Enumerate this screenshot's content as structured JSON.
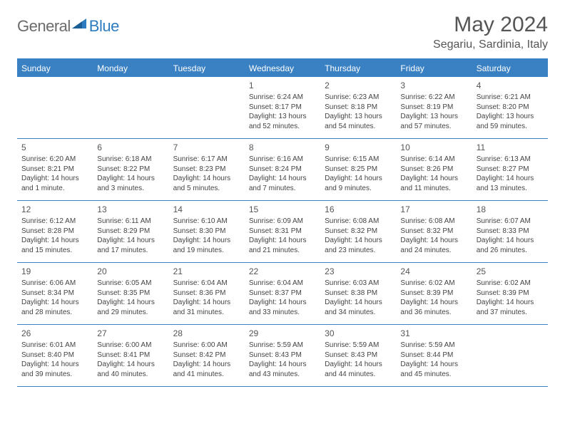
{
  "logo": {
    "word1": "General",
    "word2": "Blue"
  },
  "title": "May 2024",
  "subtitle": "Segariu, Sardinia, Italy",
  "colors": {
    "header_bar": "#3a81c4",
    "header_text": "#ffffff",
    "title_text": "#555555",
    "body_text": "#444444",
    "logo_gray": "#6b6b6b",
    "logo_blue": "#2d7cc0",
    "background": "#ffffff"
  },
  "day_names": [
    "Sunday",
    "Monday",
    "Tuesday",
    "Wednesday",
    "Thursday",
    "Friday",
    "Saturday"
  ],
  "weeks": [
    [
      null,
      null,
      null,
      {
        "n": "1",
        "sr": "Sunrise: 6:24 AM",
        "ss": "Sunset: 8:17 PM",
        "dl": "Daylight: 13 hours and 52 minutes."
      },
      {
        "n": "2",
        "sr": "Sunrise: 6:23 AM",
        "ss": "Sunset: 8:18 PM",
        "dl": "Daylight: 13 hours and 54 minutes."
      },
      {
        "n": "3",
        "sr": "Sunrise: 6:22 AM",
        "ss": "Sunset: 8:19 PM",
        "dl": "Daylight: 13 hours and 57 minutes."
      },
      {
        "n": "4",
        "sr": "Sunrise: 6:21 AM",
        "ss": "Sunset: 8:20 PM",
        "dl": "Daylight: 13 hours and 59 minutes."
      }
    ],
    [
      {
        "n": "5",
        "sr": "Sunrise: 6:20 AM",
        "ss": "Sunset: 8:21 PM",
        "dl": "Daylight: 14 hours and 1 minute."
      },
      {
        "n": "6",
        "sr": "Sunrise: 6:18 AM",
        "ss": "Sunset: 8:22 PM",
        "dl": "Daylight: 14 hours and 3 minutes."
      },
      {
        "n": "7",
        "sr": "Sunrise: 6:17 AM",
        "ss": "Sunset: 8:23 PM",
        "dl": "Daylight: 14 hours and 5 minutes."
      },
      {
        "n": "8",
        "sr": "Sunrise: 6:16 AM",
        "ss": "Sunset: 8:24 PM",
        "dl": "Daylight: 14 hours and 7 minutes."
      },
      {
        "n": "9",
        "sr": "Sunrise: 6:15 AM",
        "ss": "Sunset: 8:25 PM",
        "dl": "Daylight: 14 hours and 9 minutes."
      },
      {
        "n": "10",
        "sr": "Sunrise: 6:14 AM",
        "ss": "Sunset: 8:26 PM",
        "dl": "Daylight: 14 hours and 11 minutes."
      },
      {
        "n": "11",
        "sr": "Sunrise: 6:13 AM",
        "ss": "Sunset: 8:27 PM",
        "dl": "Daylight: 14 hours and 13 minutes."
      }
    ],
    [
      {
        "n": "12",
        "sr": "Sunrise: 6:12 AM",
        "ss": "Sunset: 8:28 PM",
        "dl": "Daylight: 14 hours and 15 minutes."
      },
      {
        "n": "13",
        "sr": "Sunrise: 6:11 AM",
        "ss": "Sunset: 8:29 PM",
        "dl": "Daylight: 14 hours and 17 minutes."
      },
      {
        "n": "14",
        "sr": "Sunrise: 6:10 AM",
        "ss": "Sunset: 8:30 PM",
        "dl": "Daylight: 14 hours and 19 minutes."
      },
      {
        "n": "15",
        "sr": "Sunrise: 6:09 AM",
        "ss": "Sunset: 8:31 PM",
        "dl": "Daylight: 14 hours and 21 minutes."
      },
      {
        "n": "16",
        "sr": "Sunrise: 6:08 AM",
        "ss": "Sunset: 8:32 PM",
        "dl": "Daylight: 14 hours and 23 minutes."
      },
      {
        "n": "17",
        "sr": "Sunrise: 6:08 AM",
        "ss": "Sunset: 8:32 PM",
        "dl": "Daylight: 14 hours and 24 minutes."
      },
      {
        "n": "18",
        "sr": "Sunrise: 6:07 AM",
        "ss": "Sunset: 8:33 PM",
        "dl": "Daylight: 14 hours and 26 minutes."
      }
    ],
    [
      {
        "n": "19",
        "sr": "Sunrise: 6:06 AM",
        "ss": "Sunset: 8:34 PM",
        "dl": "Daylight: 14 hours and 28 minutes."
      },
      {
        "n": "20",
        "sr": "Sunrise: 6:05 AM",
        "ss": "Sunset: 8:35 PM",
        "dl": "Daylight: 14 hours and 29 minutes."
      },
      {
        "n": "21",
        "sr": "Sunrise: 6:04 AM",
        "ss": "Sunset: 8:36 PM",
        "dl": "Daylight: 14 hours and 31 minutes."
      },
      {
        "n": "22",
        "sr": "Sunrise: 6:04 AM",
        "ss": "Sunset: 8:37 PM",
        "dl": "Daylight: 14 hours and 33 minutes."
      },
      {
        "n": "23",
        "sr": "Sunrise: 6:03 AM",
        "ss": "Sunset: 8:38 PM",
        "dl": "Daylight: 14 hours and 34 minutes."
      },
      {
        "n": "24",
        "sr": "Sunrise: 6:02 AM",
        "ss": "Sunset: 8:39 PM",
        "dl": "Daylight: 14 hours and 36 minutes."
      },
      {
        "n": "25",
        "sr": "Sunrise: 6:02 AM",
        "ss": "Sunset: 8:39 PM",
        "dl": "Daylight: 14 hours and 37 minutes."
      }
    ],
    [
      {
        "n": "26",
        "sr": "Sunrise: 6:01 AM",
        "ss": "Sunset: 8:40 PM",
        "dl": "Daylight: 14 hours and 39 minutes."
      },
      {
        "n": "27",
        "sr": "Sunrise: 6:00 AM",
        "ss": "Sunset: 8:41 PM",
        "dl": "Daylight: 14 hours and 40 minutes."
      },
      {
        "n": "28",
        "sr": "Sunrise: 6:00 AM",
        "ss": "Sunset: 8:42 PM",
        "dl": "Daylight: 14 hours and 41 minutes."
      },
      {
        "n": "29",
        "sr": "Sunrise: 5:59 AM",
        "ss": "Sunset: 8:43 PM",
        "dl": "Daylight: 14 hours and 43 minutes."
      },
      {
        "n": "30",
        "sr": "Sunrise: 5:59 AM",
        "ss": "Sunset: 8:43 PM",
        "dl": "Daylight: 14 hours and 44 minutes."
      },
      {
        "n": "31",
        "sr": "Sunrise: 5:59 AM",
        "ss": "Sunset: 8:44 PM",
        "dl": "Daylight: 14 hours and 45 minutes."
      },
      null
    ]
  ]
}
